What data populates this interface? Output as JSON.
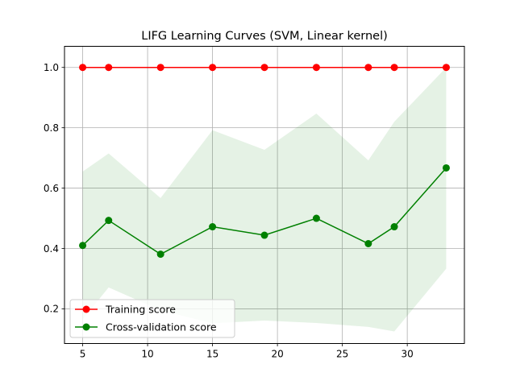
{
  "chart_data": {
    "type": "line",
    "title": "LIFG Learning Curves (SVM, Linear kernel)",
    "xlabel": "",
    "ylabel": "",
    "xlim": [
      3.6,
      34.4
    ],
    "ylim": [
      0.085,
      1.07
    ],
    "x": [
      5,
      7,
      11,
      15,
      19,
      23,
      27,
      29,
      33
    ],
    "xticks": [
      5,
      10,
      15,
      20,
      25,
      30
    ],
    "yticks": [
      0.2,
      0.4,
      0.6,
      0.8,
      1.0
    ],
    "xtick_labels": [
      "5",
      "10",
      "15",
      "20",
      "25",
      "30"
    ],
    "ytick_labels": [
      "0.2",
      "0.4",
      "0.6",
      "0.8",
      "1.0"
    ],
    "grid": true,
    "legend_position": "lower-left",
    "series": [
      {
        "name": "Training score",
        "color": "#ff0000",
        "values": [
          1.0,
          1.0,
          1.0,
          1.0,
          1.0,
          1.0,
          1.0,
          1.0,
          1.0
        ],
        "band_upper": [
          1.0,
          1.0,
          1.0,
          1.0,
          1.0,
          1.0,
          1.0,
          1.0,
          1.0
        ],
        "band_lower": [
          1.0,
          1.0,
          1.0,
          1.0,
          1.0,
          1.0,
          1.0,
          1.0,
          1.0
        ],
        "band_color": "#ff0000"
      },
      {
        "name": "Cross-validation score",
        "color": "#008000",
        "values": [
          0.41,
          0.493,
          0.381,
          0.472,
          0.444,
          0.5,
          0.416,
          0.472,
          0.667
        ],
        "band_upper": [
          0.655,
          0.715,
          0.567,
          0.792,
          0.727,
          0.847,
          0.692,
          0.82,
          1.0
        ],
        "band_lower": [
          0.165,
          0.271,
          0.195,
          0.152,
          0.161,
          0.153,
          0.14,
          0.125,
          0.333
        ],
        "band_color": "#008000"
      }
    ]
  }
}
